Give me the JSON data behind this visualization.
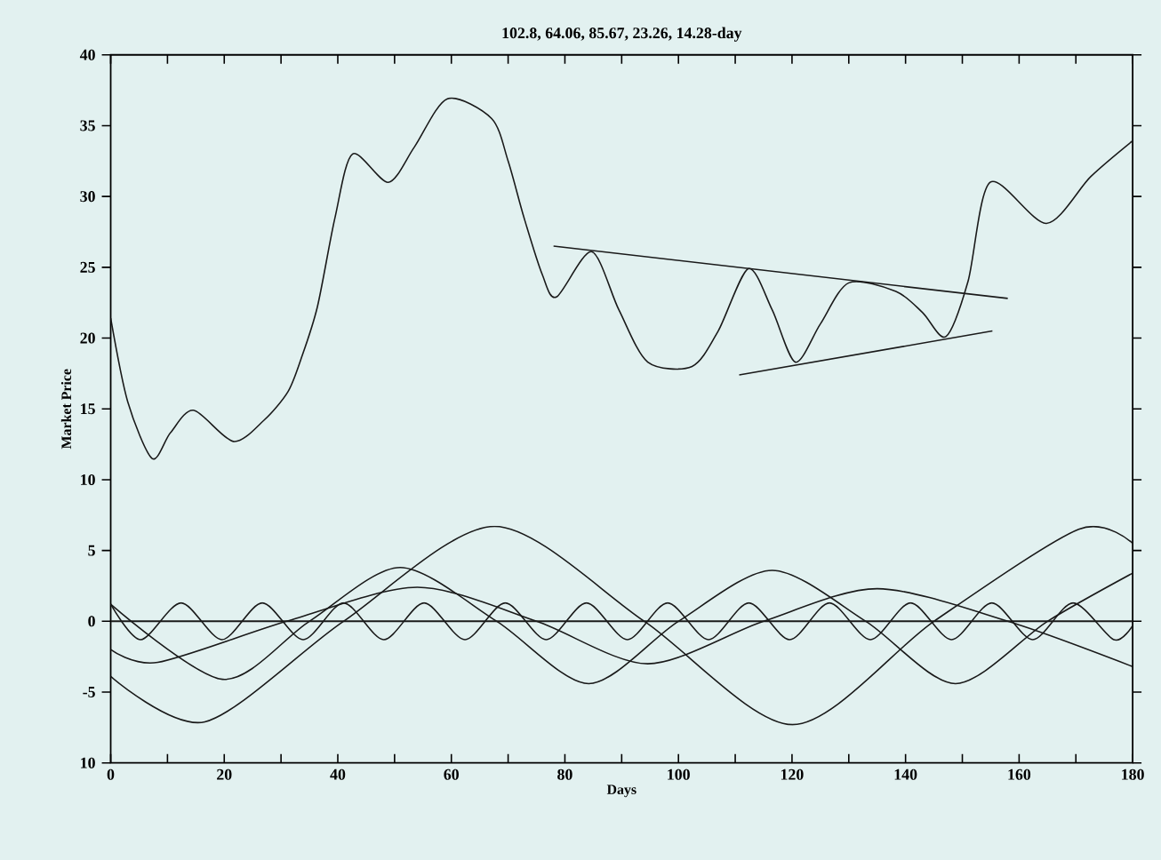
{
  "chart_data": {
    "type": "line",
    "title": "102.8, 64.06, 85.67, 23.26, 14.28-day",
    "xlabel": "Days",
    "ylabel": "Market Price",
    "xlim": [
      0,
      180
    ],
    "ylim": [
      -10,
      40
    ],
    "xticks": [
      0,
      {
        "value": 10,
        "label": null
      },
      20,
      {
        "value": 30,
        "label": null
      },
      40,
      {
        "value": 50,
        "label": null
      },
      60,
      {
        "value": 70,
        "label": null
      },
      80,
      {
        "value": 90,
        "label": null
      },
      100,
      {
        "value": 110,
        "label": null
      },
      120,
      {
        "value": 130,
        "label": null
      },
      140,
      {
        "value": 150,
        "label": null
      },
      160,
      {
        "value": 170,
        "label": null
      },
      180
    ],
    "yticks": [
      {
        "value": -10,
        "label": "10"
      },
      -5,
      0,
      5,
      10,
      15,
      20,
      25,
      30,
      35,
      40
    ],
    "ref_lines": [
      {
        "axis": "y",
        "value": 0,
        "color": "#1a1a1a"
      }
    ],
    "series": [
      {
        "color": "#1a1a1a",
        "x": [
          0,
          3,
          7.3,
          10.5,
          14.6,
          21.6,
          27,
          31.2,
          33.5,
          36.4,
          39.5,
          42.6,
          48.9,
          53.5,
          59.3,
          67.1,
          70,
          72.8,
          76,
          78.5,
          84.7,
          89.5,
          94.6,
          102.4,
          107,
          112.3,
          116.5,
          120.6,
          125,
          130.0,
          138.3,
          143,
          147.1,
          151,
          154.9,
          164.8,
          172.6,
          179.9
        ],
        "values": [
          21.4,
          15.5,
          11.5,
          13.3,
          14.9,
          12.7,
          14.2,
          16.2,
          18.5,
          22.2,
          28.5,
          33.0,
          31.0,
          33.5,
          36.9,
          35.5,
          32.5,
          28.5,
          24.5,
          22.9,
          26.1,
          22.0,
          18.3,
          18.0,
          20.5,
          24.9,
          22.0,
          18.3,
          21.0,
          23.9,
          23.3,
          21.8,
          20.1,
          24.0,
          31.0,
          28.1,
          31.4,
          33.9
        ]
      },
      {
        "color": "#1a1a1a",
        "x": [
          78,
          158
        ],
        "values": [
          26.5,
          22.8
        ]
      },
      {
        "color": "#1a1a1a",
        "x": [
          110.7,
          155.3
        ],
        "values": [
          17.4,
          20.5
        ]
      },
      {
        "color": "#1a1a1a",
        "x": [
          0,
          16.6,
          41,
          67.6,
          94,
          120.1,
          145,
          170.5,
          180
        ],
        "values": [
          -3.9,
          -7.1,
          0,
          6.7,
          0,
          -7.3,
          0,
          6.5,
          5.5
        ]
      },
      {
        "color": "#1a1a1a",
        "x": [
          0,
          19.7,
          35,
          51,
          68,
          84.2,
          100,
          116.5,
          133,
          148.8,
          165,
          180
        ],
        "values": [
          1.2,
          -4.1,
          0,
          3.8,
          0,
          -4.4,
          0,
          3.6,
          0,
          -4.4,
          0,
          3.4
        ]
      },
      {
        "color": "#1a1a1a",
        "x": [
          0,
          8.3,
          31,
          54,
          75,
          94.6,
          115,
          135,
          158,
          180
        ],
        "values": [
          -2.0,
          -2.9,
          0,
          2.4,
          0,
          -3.0,
          0,
          2.3,
          0,
          -3.2
        ]
      },
      {
        "color": "#1a1a1a",
        "x": [
          0,
          5.3,
          12.4,
          19.6,
          26.7,
          33.9,
          41.0,
          48.1,
          55.2,
          62.4,
          69.5,
          76.7,
          83.8,
          91.0,
          98.1,
          105.3,
          112.4,
          119.6,
          126.6,
          133.8,
          140.9,
          148.1,
          155.2,
          162.4,
          169.5,
          176.7,
          180
        ],
        "values": [
          1.2,
          -1.3,
          1.3,
          -1.3,
          1.3,
          -1.3,
          1.3,
          -1.3,
          1.3,
          -1.3,
          1.3,
          -1.3,
          1.3,
          -1.3,
          1.3,
          -1.3,
          1.3,
          -1.3,
          1.3,
          -1.3,
          1.3,
          -1.3,
          1.3,
          -1.3,
          1.3,
          -1.3,
          -0.3
        ]
      }
    ]
  }
}
